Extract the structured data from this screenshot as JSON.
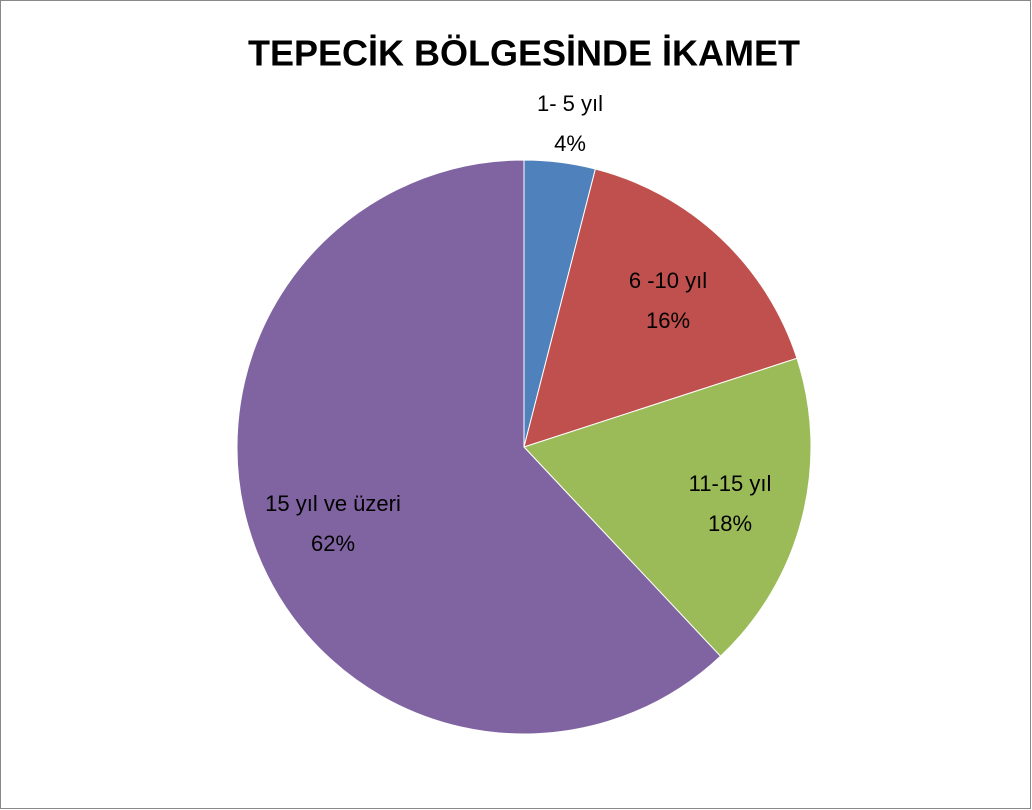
{
  "chart_data": {
    "type": "pie",
    "title": "TEPECİK BÖLGESİNDE İKAMET",
    "categories": [
      "1- 5  yıl",
      "6 -10  yıl",
      "11-15  yıl",
      "15 yıl ve üzeri"
    ],
    "values": [
      4,
      16,
      18,
      62
    ],
    "value_labels": [
      "4%",
      "16%",
      "18%",
      "62%"
    ],
    "colors": [
      "#4f81bd",
      "#c0504d",
      "#9bbb59",
      "#8064a2"
    ]
  }
}
